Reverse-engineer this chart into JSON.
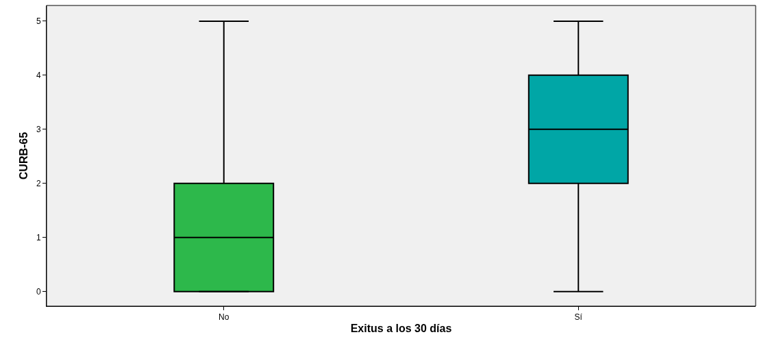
{
  "chart_data": {
    "type": "box",
    "xlabel": "Exitus a los 30 días",
    "ylabel": "CURB-65",
    "categories": [
      "No",
      "Sí"
    ],
    "boxes": [
      {
        "low": 0,
        "q1": 0,
        "median": 1,
        "q3": 2,
        "high": 5
      },
      {
        "low": 0,
        "q1": 2,
        "median": 3,
        "q3": 4,
        "high": 5
      }
    ],
    "colors": [
      "#2db84b",
      "#00a6a6"
    ],
    "ylim": [
      -0.27,
      5.29
    ],
    "yticks": [
      0,
      1,
      2,
      3,
      4,
      5
    ],
    "grid": false
  }
}
